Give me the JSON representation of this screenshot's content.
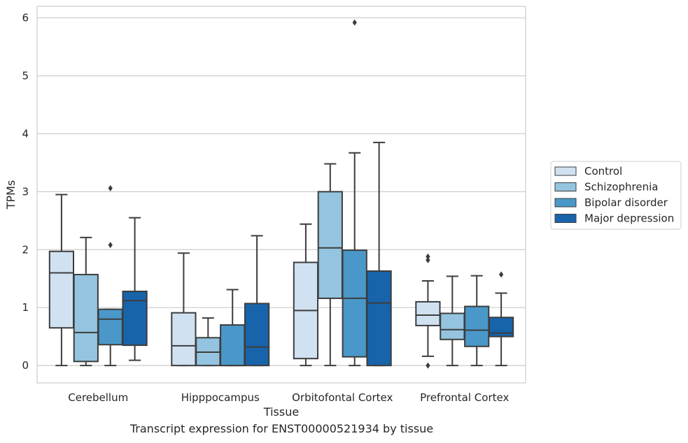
{
  "caption": "Transcript expression for ENST00000521934 by tissue",
  "chart_data": {
    "type": "box",
    "xlabel": "Tissue",
    "ylabel": "TPMs",
    "ylim": [
      -0.3,
      6.2
    ],
    "yticks": [
      0,
      1,
      2,
      3,
      4,
      5,
      6
    ],
    "grid": "horizontal",
    "legend_position": "right",
    "categories": [
      "Cerebellum",
      "Hipppocampus",
      "Orbitofontal Cortex",
      "Prefrontal Cortex"
    ],
    "series": [
      {
        "name": "Control",
        "color": "#d0e1f2",
        "boxes": [
          {
            "whislo": 0.0,
            "q1": 0.65,
            "med": 1.6,
            "q3": 1.97,
            "whishi": 2.95,
            "fliers": []
          },
          {
            "whislo": 0.0,
            "q1": 0.0,
            "med": 0.34,
            "q3": 0.91,
            "whishi": 1.94,
            "fliers": []
          },
          {
            "whislo": 0.0,
            "q1": 0.12,
            "med": 0.95,
            "q3": 1.78,
            "whishi": 2.44,
            "fliers": []
          },
          {
            "whislo": 0.16,
            "q1": 0.69,
            "med": 0.87,
            "q3": 1.1,
            "whishi": 1.46,
            "fliers": [
              0.0,
              1.82,
              1.88
            ]
          }
        ]
      },
      {
        "name": "Schizophrenia",
        "color": "#94c4df",
        "boxes": [
          {
            "whislo": 0.0,
            "q1": 0.07,
            "med": 0.57,
            "q3": 1.57,
            "whishi": 2.21,
            "fliers": []
          },
          {
            "whislo": 0.0,
            "q1": 0.0,
            "med": 0.23,
            "q3": 0.48,
            "whishi": 0.82,
            "fliers": []
          },
          {
            "whislo": 0.0,
            "q1": 1.16,
            "med": 2.03,
            "q3": 3.0,
            "whishi": 3.48,
            "fliers": []
          },
          {
            "whislo": 0.0,
            "q1": 0.45,
            "med": 0.62,
            "q3": 0.9,
            "whishi": 1.54,
            "fliers": []
          }
        ]
      },
      {
        "name": "Bipolar disorder",
        "color": "#4a98c9",
        "boxes": [
          {
            "whislo": 0.0,
            "q1": 0.36,
            "med": 0.8,
            "q3": 0.97,
            "whishi": 0.97,
            "fliers": [
              2.08,
              3.06
            ]
          },
          {
            "whislo": 0.0,
            "q1": 0.0,
            "med": 0.0,
            "q3": 0.7,
            "whishi": 1.31,
            "fliers": []
          },
          {
            "whislo": 0.0,
            "q1": 0.15,
            "med": 1.16,
            "q3": 1.99,
            "whishi": 3.67,
            "fliers": [
              5.92
            ]
          },
          {
            "whislo": 0.0,
            "q1": 0.33,
            "med": 0.61,
            "q3": 1.02,
            "whishi": 1.55,
            "fliers": []
          }
        ]
      },
      {
        "name": "Major depression",
        "color": "#1764ab",
        "boxes": [
          {
            "whislo": 0.09,
            "q1": 0.35,
            "med": 1.12,
            "q3": 1.28,
            "whishi": 2.55,
            "fliers": []
          },
          {
            "whislo": 0.0,
            "q1": 0.0,
            "med": 0.32,
            "q3": 1.07,
            "whishi": 2.24,
            "fliers": []
          },
          {
            "whislo": 0.0,
            "q1": 0.0,
            "med": 1.08,
            "q3": 1.63,
            "whishi": 3.85,
            "fliers": []
          },
          {
            "whislo": 0.0,
            "q1": 0.5,
            "med": 0.56,
            "q3": 0.83,
            "whishi": 1.25,
            "fliers": [
              1.57
            ]
          }
        ]
      }
    ]
  }
}
